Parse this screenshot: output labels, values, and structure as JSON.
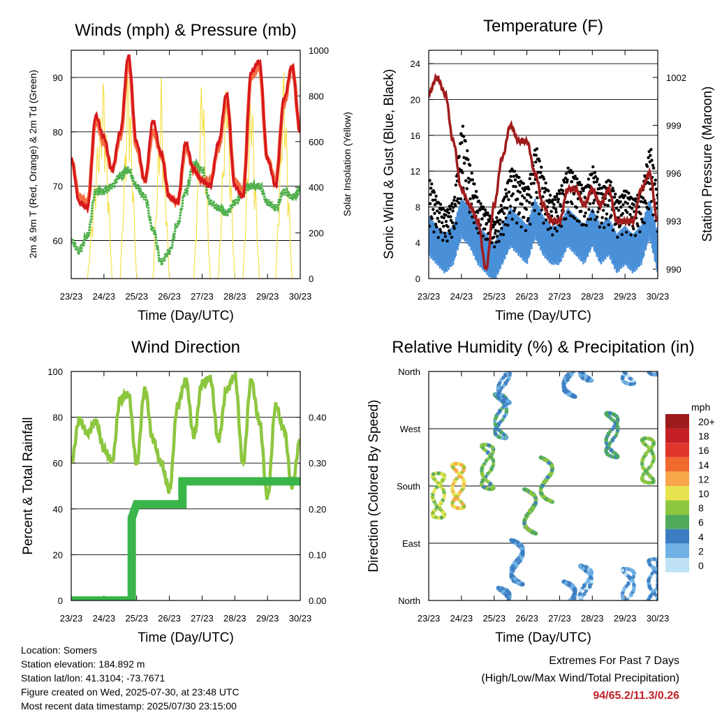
{
  "x_tick_labels": [
    "23/23",
    "24/23",
    "25/23",
    "26/23",
    "27/23",
    "28/23",
    "29/23",
    "30/23"
  ],
  "info": {
    "location": "Location: Somers",
    "elevation": "Station elevation: 184.892 m",
    "latlon": "Station lat/lon: 41.3104; -73.7671",
    "created": "Figure created on Wed, 2025-07-30, at 23:48 UTC",
    "recent": "Most recent data timestamp: 2025/07/30 23:15:00"
  },
  "extremes": {
    "title": "Extremes For Past 7 Days",
    "subtitle": "(High/Low/Max Wind/Total Precipitation)",
    "values": "94/65.2/11.3/0.26"
  },
  "colors": {
    "temp2m": "#d7191c",
    "temp9m": "#f46d43",
    "dewpoint": "#4daf4a",
    "solar": "#f5e04a",
    "gust": "#000000",
    "wind": "#4a90d9",
    "pressure": "#a01c1c",
    "rh": "#8dc63f",
    "precip": "#3ab54a"
  },
  "chart_data": [
    {
      "type": "line",
      "title": "Temperature (F)",
      "xlabel": "Time (Day/UTC)",
      "ylabel": "2m & 9m T (Red, Orange) & 2m Td (Green)",
      "y2label": "Solar Insolation (Yellow)",
      "ylim": [
        53,
        95
      ],
      "y2lim": [
        0,
        1000
      ],
      "yticks": [
        60,
        70,
        80,
        90
      ],
      "y2ticks": [
        0,
        200,
        400,
        600,
        800,
        1000
      ],
      "x": [
        0,
        0.25,
        0.5,
        0.75,
        1,
        1.25,
        1.5,
        1.75,
        2,
        2.25,
        2.5,
        2.75,
        3,
        3.25,
        3.5,
        3.75,
        4,
        4.25,
        4.5,
        4.75,
        5,
        5.25,
        5.5,
        5.75,
        6,
        6.25,
        6.5,
        6.75,
        7
      ],
      "series": [
        {
          "id": "temp2m",
          "values": [
            75,
            67,
            66,
            83,
            79,
            73,
            80,
            94,
            78,
            71,
            82,
            76,
            68,
            67,
            78,
            73,
            71,
            70,
            78,
            87,
            70,
            68,
            91,
            93,
            75,
            70,
            86,
            92,
            80
          ]
        },
        {
          "id": "temp9m",
          "values": [
            75,
            68,
            67,
            82,
            78,
            73,
            79,
            93,
            77,
            71,
            80,
            76,
            68,
            67,
            77,
            73,
            71,
            71,
            77,
            86,
            71,
            69,
            90,
            92,
            75,
            71,
            85,
            92,
            80
          ]
        },
        {
          "id": "dewpoint",
          "values": [
            60,
            58,
            61,
            69,
            69,
            70,
            72,
            73,
            70,
            68,
            62,
            56,
            58,
            63,
            69,
            74,
            73,
            67,
            66,
            65,
            67,
            69,
            70,
            70,
            67,
            66,
            69,
            68,
            69
          ]
        },
        {
          "id": "solar",
          "values": [
            0,
            0,
            0,
            500,
            900,
            0,
            0,
            980,
            0,
            0,
            0,
            880,
            0,
            0,
            0,
            0,
            950,
            0,
            0,
            950,
            0,
            0,
            900,
            0,
            0,
            0,
            950,
            0,
            0
          ]
        }
      ]
    },
    {
      "type": "line",
      "title": "Winds (mph) & Pressure (mb)",
      "xlabel": "Time (Day/UTC)",
      "ylabel": "Sonic Wind & Gust (Blue, Black)",
      "y2label": "Station Pressure (Maroon)",
      "ylim": [
        0,
        25.5
      ],
      "y2lim": [
        989.4,
        1003.7
      ],
      "yticks": [
        0,
        4,
        8,
        12,
        16,
        20,
        24
      ],
      "y2ticks": [
        990,
        993,
        996,
        999,
        1002
      ],
      "x": [
        0,
        0.25,
        0.5,
        0.75,
        1,
        1.25,
        1.5,
        1.75,
        2,
        2.25,
        2.5,
        2.75,
        3,
        3.25,
        3.5,
        3.75,
        4,
        4.25,
        4.5,
        4.75,
        5,
        5.25,
        5.5,
        5.75,
        6,
        6.25,
        6.5,
        6.75,
        7
      ],
      "series": [
        {
          "id": "gust",
          "values": [
            9,
            7,
            6,
            7,
            14,
            10,
            7,
            6,
            5,
            7,
            10,
            9,
            8,
            12,
            9,
            7,
            8,
            10,
            9,
            8,
            10,
            8,
            9,
            7,
            8,
            7,
            8,
            12,
            7
          ]
        },
        {
          "id": "wind",
          "values": [
            5,
            4,
            3,
            4,
            7,
            6,
            4,
            3,
            2,
            4,
            6,
            5,
            4,
            7,
            5,
            4,
            4,
            6,
            5,
            4,
            6,
            4,
            5,
            3,
            4,
            3,
            4,
            7,
            3
          ]
        },
        {
          "id": "pressure",
          "values": [
            1001,
            1002,
            1001,
            998,
            995,
            994,
            993,
            990,
            994,
            997,
            999,
            998,
            998,
            996,
            994,
            993,
            993,
            995,
            995,
            994,
            995,
            994,
            995,
            993,
            993,
            993,
            995,
            996,
            993
          ]
        }
      ]
    },
    {
      "type": "line",
      "title": "Relative Humidity (%) & Precipitation (in)",
      "xlabel": "Time (Day/UTC)",
      "ylabel": "Percent & Total Rainfall",
      "ylim": [
        0,
        100
      ],
      "y2lim": [
        0,
        0.5
      ],
      "yticks": [
        0,
        20,
        40,
        60,
        80,
        100
      ],
      "y2ticks": [
        "0.00",
        "0.10",
        "0.20",
        "0.30",
        "0.40"
      ],
      "x": [
        0,
        0.25,
        0.5,
        0.75,
        1,
        1.25,
        1.5,
        1.75,
        2,
        2.25,
        2.5,
        2.75,
        3,
        3.25,
        3.5,
        3.75,
        4,
        4.25,
        4.5,
        4.75,
        5,
        5.25,
        5.5,
        5.75,
        6,
        6.25,
        6.5,
        6.75,
        7
      ],
      "series": [
        {
          "id": "rh",
          "values": [
            60,
            79,
            73,
            78,
            66,
            61,
            88,
            90,
            60,
            92,
            70,
            60,
            48,
            85,
            96,
            72,
            95,
            97,
            70,
            92,
            98,
            60,
            96,
            78,
            45,
            85,
            75,
            50,
            70
          ]
        },
        {
          "id": "precip_steps",
          "x": [
            0,
            1.85,
            1.85,
            2.0,
            2.0,
            3.4,
            3.4,
            7
          ],
          "values": [
            0,
            0,
            0.18,
            0.21,
            0.21,
            0.21,
            0.26,
            0.26
          ]
        }
      ]
    },
    {
      "type": "scatter",
      "title": "Wind Direction",
      "xlabel": "Time (Day/UTC)",
      "ylabel": "Direction (Colored By Speed)",
      "ylim": [
        0,
        360
      ],
      "ytick_labels": [
        "North",
        "East",
        "South",
        "West",
        "North"
      ],
      "legend": {
        "unit": "mph",
        "labels": [
          "20+",
          "18",
          "16",
          "14",
          "12",
          "10",
          "8",
          "6",
          "4",
          "2",
          "0"
        ],
        "colors": [
          "#9e1b1b",
          "#c42026",
          "#e0352b",
          "#f06a2e",
          "#f8a64a",
          "#e7e34f",
          "#8dc63f",
          "#4faa5c",
          "#3b7dc2",
          "#6fb1e4",
          "#bfe3f5"
        ]
      },
      "clusters": [
        {
          "x": 0.3,
          "dir": 165,
          "speed": 8
        },
        {
          "x": 0.9,
          "dir": 180,
          "speed": 10
        },
        {
          "x": 1.8,
          "dir": 210,
          "speed": 6
        },
        {
          "x": 2.2,
          "dir": 290,
          "speed": 4
        },
        {
          "x": 2.3,
          "dir": 345,
          "speed": 3
        },
        {
          "x": 2.7,
          "dir": 60,
          "speed": 3
        },
        {
          "x": 3.1,
          "dir": 140,
          "speed": 6
        },
        {
          "x": 3.6,
          "dir": 190,
          "speed": 6
        },
        {
          "x": 4.3,
          "dir": 355,
          "speed": 3
        },
        {
          "x": 4.8,
          "dir": 20,
          "speed": 2
        },
        {
          "x": 5.6,
          "dir": 260,
          "speed": 5
        },
        {
          "x": 6.1,
          "dir": 15,
          "speed": 2
        },
        {
          "x": 6.7,
          "dir": 220,
          "speed": 7
        },
        {
          "x": 6.9,
          "dir": 30,
          "speed": 3
        }
      ]
    }
  ]
}
